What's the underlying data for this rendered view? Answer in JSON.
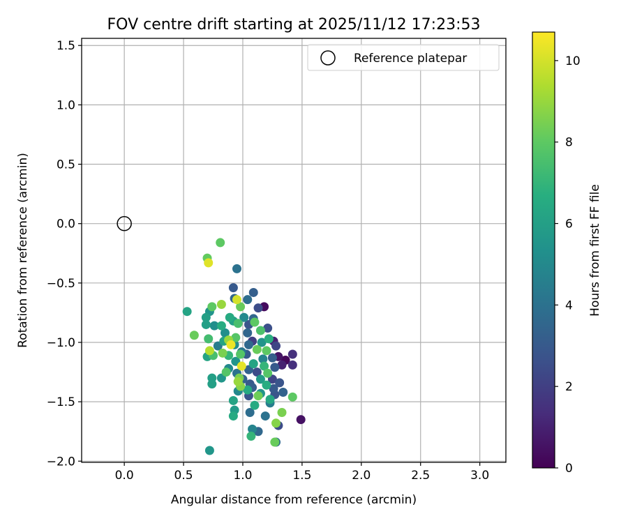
{
  "chart_data": {
    "type": "scatter",
    "title": "FOV centre drift starting at 2025/11/12 17:23:53",
    "xlabel": "Angular distance from reference (arcmin)",
    "ylabel": "Rotation from reference (arcmin)",
    "xlim": [
      -0.36,
      3.22
    ],
    "ylim": [
      -2.01,
      1.56
    ],
    "xticks": [
      0.0,
      0.5,
      1.0,
      1.5,
      2.0,
      2.5,
      3.0
    ],
    "xtick_labels": [
      "0.0",
      "0.5",
      "1.0",
      "1.5",
      "2.0",
      "2.5",
      "3.0"
    ],
    "yticks": [
      -2.0,
      -1.5,
      -1.0,
      -0.5,
      0.0,
      0.5,
      1.0,
      1.5
    ],
    "ytick_labels": [
      "−2.0",
      "−1.5",
      "−1.0",
      "−0.5",
      "0.0",
      "0.5",
      "1.0",
      "1.5"
    ],
    "grid": true,
    "legend": {
      "placement": "top-right",
      "entries": [
        "Reference platepar"
      ]
    },
    "reference_point": {
      "x": 0.0,
      "y": 0.0,
      "label": "Reference platepar"
    },
    "colorbar": {
      "label": "Hours from first FF file",
      "range": [
        0,
        10.7
      ],
      "ticks": [
        0,
        2,
        4,
        6,
        8,
        10
      ],
      "tick_labels": [
        "0",
        "2",
        "4",
        "6",
        "8",
        "10"
      ],
      "colormap": "viridis"
    },
    "points": [
      [
        0.81,
        -0.16,
        8.0
      ],
      [
        0.7,
        -0.29,
        8.1
      ],
      [
        0.71,
        -0.33,
        10.2
      ],
      [
        0.95,
        -0.38,
        4.0
      ],
      [
        0.92,
        -0.54,
        3.0
      ],
      [
        1.09,
        -0.58,
        3.2
      ],
      [
        0.93,
        -0.63,
        3.5
      ],
      [
        1.04,
        -0.64,
        3.8
      ],
      [
        0.95,
        -0.64,
        10.0
      ],
      [
        0.82,
        -0.68,
        9.0
      ],
      [
        1.18,
        -0.7,
        0.3
      ],
      [
        0.74,
        -0.7,
        8.0
      ],
      [
        0.98,
        -0.7,
        8.2
      ],
      [
        1.13,
        -0.71,
        2.5
      ],
      [
        0.72,
        -0.74,
        5.5
      ],
      [
        0.53,
        -0.74,
        6.2
      ],
      [
        0.69,
        -0.79,
        6.0
      ],
      [
        0.89,
        -0.79,
        6.5
      ],
      [
        1.01,
        -0.79,
        5.0
      ],
      [
        1.09,
        -0.8,
        3.5
      ],
      [
        0.92,
        -0.82,
        6.0
      ],
      [
        1.1,
        -0.83,
        8.0
      ],
      [
        0.69,
        -0.85,
        6.0
      ],
      [
        0.76,
        -0.86,
        5.2
      ],
      [
        0.82,
        -0.86,
        6.6
      ],
      [
        0.96,
        -0.84,
        7.5
      ],
      [
        1.05,
        -0.85,
        2.8
      ],
      [
        1.21,
        -0.88,
        2.6
      ],
      [
        1.15,
        -0.9,
        7.6
      ],
      [
        0.85,
        -0.92,
        5.2
      ],
      [
        1.04,
        -0.92,
        3.5
      ],
      [
        0.59,
        -0.94,
        8.2
      ],
      [
        0.71,
        -0.97,
        7.4
      ],
      [
        0.94,
        -0.96,
        7.8
      ],
      [
        0.84,
        -0.99,
        6.2
      ],
      [
        0.88,
        -0.98,
        9.0
      ],
      [
        1.08,
        -0.99,
        2.0
      ],
      [
        1.16,
        -1.0,
        5.5
      ],
      [
        1.22,
        -0.97,
        6.7
      ],
      [
        1.26,
        -0.99,
        1.0
      ],
      [
        0.93,
        -1.02,
        5.2
      ],
      [
        1.05,
        -1.02,
        3.6
      ],
      [
        1.28,
        -1.03,
        2.2
      ],
      [
        0.9,
        -1.02,
        10.4
      ],
      [
        0.79,
        -1.03,
        4.5
      ],
      [
        0.72,
        -1.07,
        9.5
      ],
      [
        1.12,
        -1.06,
        8.2
      ],
      [
        0.99,
        -1.08,
        4.2
      ],
      [
        1.2,
        -1.07,
        8.0
      ],
      [
        0.83,
        -1.09,
        8.5
      ],
      [
        0.88,
        -1.11,
        7.0
      ],
      [
        1.03,
        -1.1,
        3.0
      ],
      [
        0.98,
        -1.1,
        7.8
      ],
      [
        1.3,
        -1.12,
        0.6
      ],
      [
        1.36,
        -1.15,
        0.2
      ],
      [
        1.42,
        -1.1,
        1.5
      ],
      [
        1.25,
        -1.13,
        3.2
      ],
      [
        1.17,
        -1.14,
        4.8
      ],
      [
        0.7,
        -1.12,
        6.2
      ],
      [
        0.75,
        -1.11,
        7.5
      ],
      [
        0.94,
        -1.16,
        5.5
      ],
      [
        1.09,
        -1.18,
        6.2
      ],
      [
        1.33,
        -1.19,
        1.0
      ],
      [
        1.42,
        -1.19,
        1.5
      ],
      [
        0.99,
        -1.2,
        10.3
      ],
      [
        1.18,
        -1.2,
        7.0
      ],
      [
        0.88,
        -1.22,
        5.0
      ],
      [
        1.05,
        -1.23,
        3.4
      ],
      [
        1.27,
        -1.21,
        3.0
      ],
      [
        0.86,
        -1.25,
        7.8
      ],
      [
        0.95,
        -1.26,
        4.0
      ],
      [
        1.12,
        -1.25,
        2.5
      ],
      [
        1.21,
        -1.26,
        7.8
      ],
      [
        0.74,
        -1.3,
        6.0
      ],
      [
        0.82,
        -1.3,
        5.6
      ],
      [
        0.97,
        -1.3,
        8.5
      ],
      [
        1.0,
        -1.31,
        3.4
      ],
      [
        1.15,
        -1.31,
        5.8
      ],
      [
        1.25,
        -1.31,
        2.2
      ],
      [
        0.96,
        -1.33,
        9.0
      ],
      [
        1.06,
        -1.35,
        3.0
      ],
      [
        1.2,
        -1.36,
        6.6
      ],
      [
        1.31,
        -1.34,
        2.8
      ],
      [
        0.74,
        -1.35,
        6.0
      ],
      [
        0.98,
        -1.37,
        8.7
      ],
      [
        1.08,
        -1.38,
        3.2
      ],
      [
        1.26,
        -1.39,
        3.0
      ],
      [
        1.34,
        -1.42,
        3.4
      ],
      [
        0.96,
        -1.41,
        5.0
      ],
      [
        1.04,
        -1.4,
        6.5
      ],
      [
        1.15,
        -1.43,
        5.5
      ],
      [
        1.27,
        -1.44,
        2.8
      ],
      [
        1.05,
        -1.45,
        2.8
      ],
      [
        1.13,
        -1.45,
        8.3
      ],
      [
        1.23,
        -1.48,
        6.4
      ],
      [
        0.92,
        -1.49,
        6.2
      ],
      [
        1.42,
        -1.46,
        8.0
      ],
      [
        1.23,
        -1.51,
        4.5
      ],
      [
        1.1,
        -1.53,
        6.5
      ],
      [
        0.93,
        -1.57,
        5.8
      ],
      [
        1.06,
        -1.59,
        3.8
      ],
      [
        1.33,
        -1.59,
        8.5
      ],
      [
        0.92,
        -1.62,
        6.5
      ],
      [
        1.19,
        -1.62,
        4.0
      ],
      [
        1.49,
        -1.65,
        0.5
      ],
      [
        1.28,
        -1.68,
        8.7
      ],
      [
        1.3,
        -1.7,
        2.5
      ],
      [
        1.08,
        -1.73,
        4.8
      ],
      [
        1.13,
        -1.75,
        3.6
      ],
      [
        1.07,
        -1.79,
        7.0
      ],
      [
        1.28,
        -1.84,
        3.7
      ],
      [
        1.27,
        -1.84,
        8.2
      ],
      [
        0.72,
        -1.91,
        5.6
      ]
    ]
  }
}
